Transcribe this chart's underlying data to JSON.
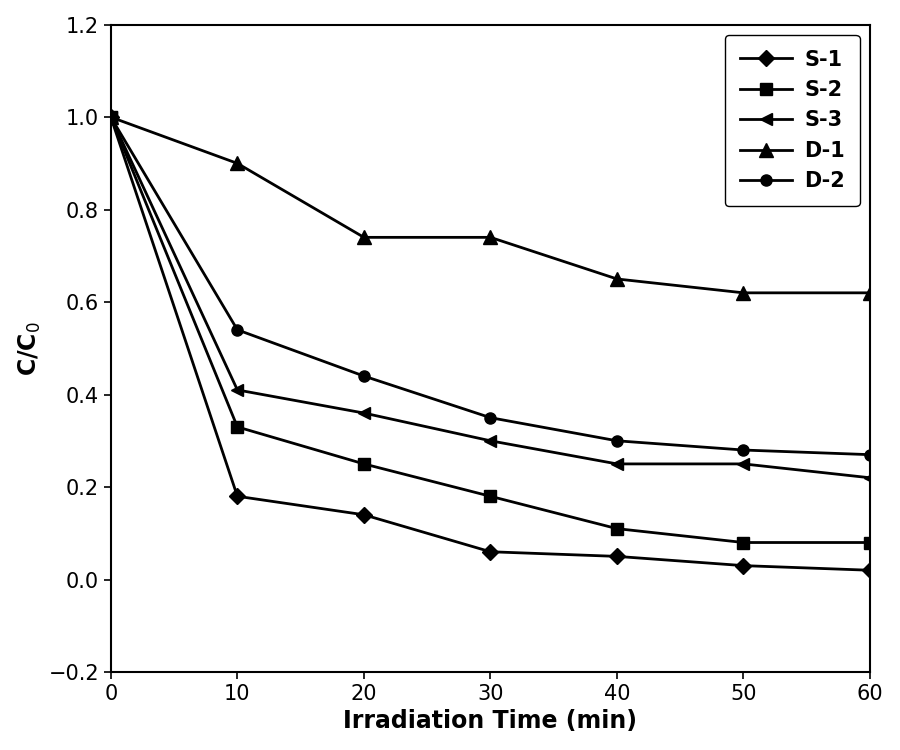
{
  "x": [
    0,
    10,
    20,
    30,
    40,
    50,
    60
  ],
  "series": {
    "S-1": [
      1.0,
      0.18,
      0.14,
      0.06,
      0.05,
      0.03,
      0.02
    ],
    "S-2": [
      1.0,
      0.33,
      0.25,
      0.18,
      0.11,
      0.08,
      0.08
    ],
    "S-3": [
      1.0,
      0.41,
      0.36,
      0.3,
      0.25,
      0.25,
      0.22
    ],
    "D-1": [
      1.0,
      0.9,
      0.74,
      0.74,
      0.65,
      0.62,
      0.62
    ],
    "D-2": [
      1.0,
      0.54,
      0.44,
      0.35,
      0.3,
      0.28,
      0.27
    ]
  },
  "markers": {
    "S-1": "D",
    "S-2": "s",
    "S-3": "<",
    "D-1": "^",
    "D-2": "o"
  },
  "marker_sizes": {
    "S-1": 8,
    "S-2": 8,
    "S-3": 8,
    "D-1": 10,
    "D-2": 8
  },
  "line_color": "black",
  "line_width": 2.0,
  "xlabel": "Irradiation Time (min)",
  "ylabel": "C/C$_0$",
  "xlim": [
    0,
    60
  ],
  "ylim": [
    -0.2,
    1.2
  ],
  "xticks": [
    0,
    10,
    20,
    30,
    40,
    50,
    60
  ],
  "yticks": [
    -0.2,
    0.0,
    0.2,
    0.4,
    0.6,
    0.8,
    1.0,
    1.2
  ],
  "legend_order": [
    "S-1",
    "S-2",
    "S-3",
    "D-1",
    "D-2"
  ],
  "legend_loc": "upper right",
  "axis_label_fontsize": 17,
  "tick_fontsize": 15,
  "legend_fontsize": 15,
  "background_color": "#ffffff",
  "figure_width": 9.0,
  "figure_height": 7.5
}
